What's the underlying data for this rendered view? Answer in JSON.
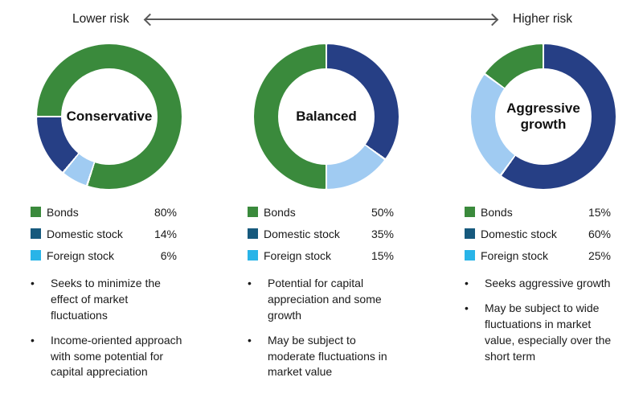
{
  "header": {
    "lower_label": "Lower risk",
    "higher_label": "Higher risk"
  },
  "colors": {
    "bonds_green": "#3a8a3c",
    "domestic_navy": "#263f85",
    "foreign_light_blue": "#a0cbf2",
    "legend_domestic_swatch": "#16597d",
    "legend_foreign_swatch": "#29b4e8",
    "arrow_gray": "#595959",
    "text_dark": "#1a1a1a",
    "segment_separator": "#ffffff"
  },
  "chart_data": [
    {
      "type": "pie",
      "title": "Conservative",
      "labels": [
        "Bonds",
        "Domestic stock",
        "Foreign stock"
      ],
      "values": [
        80,
        14,
        6
      ],
      "legend_position": "below",
      "render": {
        "start_deg": 270,
        "draw_order": [
          0,
          2,
          1
        ]
      }
    },
    {
      "type": "pie",
      "title": "Balanced",
      "labels": [
        "Bonds",
        "Domestic stock",
        "Foreign stock"
      ],
      "values": [
        50,
        35,
        15
      ],
      "legend_position": "below",
      "render": {
        "start_deg": 0,
        "draw_order": [
          1,
          2,
          0
        ]
      }
    },
    {
      "type": "pie",
      "title": "Aggressive growth",
      "labels": [
        "Bonds",
        "Domestic stock",
        "Foreign stock"
      ],
      "values": [
        15,
        60,
        25
      ],
      "legend_position": "below",
      "render": {
        "start_deg": 0,
        "draw_order": [
          1,
          2,
          0
        ]
      }
    }
  ],
  "columns": [
    {
      "center_label": "Conservative",
      "legend": [
        {
          "label": "Bonds",
          "value": "80%"
        },
        {
          "label": "Domestic stock",
          "value": "14%"
        },
        {
          "label": "Foreign stock",
          "value": "6%"
        }
      ],
      "bullet_marker": "•",
      "bullets": [
        "Seeks to minimize the effect of market fluctuations",
        "Income-oriented approach with some potential for capital appreciation"
      ]
    },
    {
      "center_label": "Balanced",
      "legend": [
        {
          "label": "Bonds",
          "value": "50%"
        },
        {
          "label": "Domestic stock",
          "value": "35%"
        },
        {
          "label": "Foreign stock",
          "value": "15%"
        }
      ],
      "bullet_marker": "•",
      "bullets": [
        "Potential for capital appreciation and some growth",
        "May be subject to moderate fluctuations in market value"
      ]
    },
    {
      "center_label": "Aggressive growth",
      "legend": [
        {
          "label": "Bonds",
          "value": "15%"
        },
        {
          "label": "Domestic stock",
          "value": "60%"
        },
        {
          "label": "Foreign stock",
          "value": "25%"
        }
      ],
      "bullet_marker": "•",
      "bullets": [
        "Seeks aggressive growth",
        "May be subject to wide fluctuations in market value, especially over the short term"
      ]
    }
  ]
}
